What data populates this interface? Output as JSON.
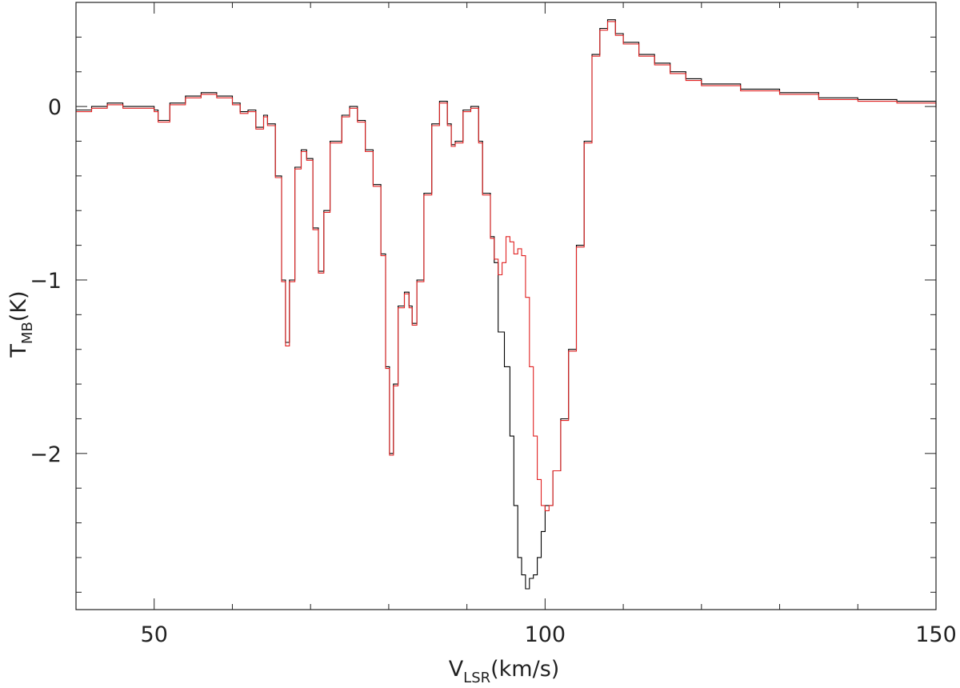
{
  "chart_data": {
    "type": "line",
    "title": "",
    "xlabel": {
      "main": "V",
      "sub": "LSR",
      "unit": "(km/s)"
    },
    "ylabel": {
      "main": "T",
      "sub": "MB",
      "unit": "(K)"
    },
    "xlim": [
      40,
      150
    ],
    "ylim": [
      -2.9,
      0.6
    ],
    "x_ticks": [
      50,
      100,
      150
    ],
    "y_ticks": [
      0,
      -1,
      -2
    ],
    "y_tick_labels": [
      "0",
      "−1",
      "−2"
    ],
    "x_minor_step": 10,
    "y_minor_step": 0.2,
    "grid": false,
    "legend": "none",
    "series": [
      {
        "color": "#000000",
        "points": [
          [
            40,
            -0.02
          ],
          [
            42,
            0.0
          ],
          [
            44,
            0.02
          ],
          [
            46,
            0.0
          ],
          [
            48,
            0.0
          ],
          [
            50,
            -0.02
          ],
          [
            50.5,
            -0.08
          ],
          [
            52,
            0.02
          ],
          [
            54,
            0.06
          ],
          [
            56,
            0.08
          ],
          [
            58,
            0.06
          ],
          [
            60,
            0.02
          ],
          [
            61,
            -0.03
          ],
          [
            62,
            -0.02
          ],
          [
            63,
            -0.12
          ],
          [
            64,
            -0.05
          ],
          [
            64.5,
            -0.1
          ],
          [
            65.5,
            -0.4
          ],
          [
            66.3,
            -1.0
          ],
          [
            66.8,
            -1.36
          ],
          [
            67.3,
            -1.0
          ],
          [
            68,
            -0.35
          ],
          [
            68.8,
            -0.25
          ],
          [
            69.5,
            -0.3
          ],
          [
            70.3,
            -0.7
          ],
          [
            71,
            -0.95
          ],
          [
            71.7,
            -0.6
          ],
          [
            72.5,
            -0.2
          ],
          [
            74,
            -0.05
          ],
          [
            75,
            0.0
          ],
          [
            76,
            -0.08
          ],
          [
            77,
            -0.25
          ],
          [
            78,
            -0.45
          ],
          [
            79,
            -0.85
          ],
          [
            79.6,
            -1.5
          ],
          [
            80.1,
            -2.0
          ],
          [
            80.6,
            -1.6
          ],
          [
            81.2,
            -1.15
          ],
          [
            82,
            -1.07
          ],
          [
            82.6,
            -1.15
          ],
          [
            83,
            -1.25
          ],
          [
            83.6,
            -1.0
          ],
          [
            84.5,
            -0.5
          ],
          [
            85.5,
            -0.1
          ],
          [
            86.5,
            0.03
          ],
          [
            87.5,
            -0.1
          ],
          [
            88,
            -0.22
          ],
          [
            88.5,
            -0.2
          ],
          [
            89.5,
            -0.02
          ],
          [
            90.5,
            0.0
          ],
          [
            91.5,
            -0.2
          ],
          [
            92,
            -0.5
          ],
          [
            93,
            -0.75
          ],
          [
            93.5,
            -0.9
          ],
          [
            94,
            -1.3
          ],
          [
            94.8,
            -1.5
          ],
          [
            95.5,
            -1.9
          ],
          [
            96,
            -2.3
          ],
          [
            96.5,
            -2.6
          ],
          [
            97,
            -2.7
          ],
          [
            97.5,
            -2.78
          ],
          [
            98,
            -2.72
          ],
          [
            98.5,
            -2.7
          ],
          [
            99,
            -2.6
          ],
          [
            99.5,
            -2.45
          ],
          [
            100,
            -2.3
          ],
          [
            101,
            -2.1
          ],
          [
            102,
            -1.8
          ],
          [
            103,
            -1.4
          ],
          [
            104,
            -0.8
          ],
          [
            105,
            -0.2
          ],
          [
            106,
            0.3
          ],
          [
            107,
            0.45
          ],
          [
            108,
            0.5
          ],
          [
            109,
            0.42
          ],
          [
            110,
            0.37
          ],
          [
            112,
            0.3
          ],
          [
            114,
            0.25
          ],
          [
            116,
            0.2
          ],
          [
            118,
            0.16
          ],
          [
            120,
            0.13
          ],
          [
            125,
            0.1
          ],
          [
            130,
            0.08
          ],
          [
            135,
            0.05
          ],
          [
            140,
            0.04
          ],
          [
            145,
            0.03
          ],
          [
            150,
            0.0
          ]
        ]
      },
      {
        "color": "#e02020",
        "points": [
          [
            40,
            -0.03
          ],
          [
            42,
            -0.01
          ],
          [
            44,
            0.01
          ],
          [
            46,
            -0.01
          ],
          [
            48,
            -0.01
          ],
          [
            50,
            -0.03
          ],
          [
            50.5,
            -0.09
          ],
          [
            52,
            0.01
          ],
          [
            54,
            0.05
          ],
          [
            56,
            0.07
          ],
          [
            58,
            0.05
          ],
          [
            60,
            0.01
          ],
          [
            61,
            -0.04
          ],
          [
            62,
            -0.03
          ],
          [
            63,
            -0.13
          ],
          [
            64,
            -0.06
          ],
          [
            64.5,
            -0.11
          ],
          [
            65.5,
            -0.41
          ],
          [
            66.3,
            -1.01
          ],
          [
            66.8,
            -1.38
          ],
          [
            67.3,
            -1.01
          ],
          [
            68,
            -0.36
          ],
          [
            68.8,
            -0.26
          ],
          [
            69.5,
            -0.31
          ],
          [
            70.3,
            -0.71
          ],
          [
            71,
            -0.96
          ],
          [
            71.7,
            -0.61
          ],
          [
            72.5,
            -0.21
          ],
          [
            74,
            -0.06
          ],
          [
            75,
            -0.01
          ],
          [
            76,
            -0.09
          ],
          [
            77,
            -0.26
          ],
          [
            78,
            -0.46
          ],
          [
            79,
            -0.86
          ],
          [
            79.6,
            -1.51
          ],
          [
            80.1,
            -2.01
          ],
          [
            80.6,
            -1.61
          ],
          [
            81.2,
            -1.16
          ],
          [
            82,
            -1.08
          ],
          [
            82.6,
            -1.16
          ],
          [
            83,
            -1.26
          ],
          [
            83.6,
            -1.01
          ],
          [
            84.5,
            -0.51
          ],
          [
            85.5,
            -0.11
          ],
          [
            86.5,
            0.02
          ],
          [
            87.5,
            -0.11
          ],
          [
            88,
            -0.23
          ],
          [
            88.5,
            -0.21
          ],
          [
            89.5,
            -0.03
          ],
          [
            90.5,
            -0.01
          ],
          [
            91.5,
            -0.21
          ],
          [
            92,
            -0.51
          ],
          [
            93,
            -0.76
          ],
          [
            93.5,
            -0.88
          ],
          [
            94,
            -0.97
          ],
          [
            94.5,
            -0.9
          ],
          [
            95,
            -0.75
          ],
          [
            95.5,
            -0.78
          ],
          [
            96,
            -0.85
          ],
          [
            96.5,
            -0.82
          ],
          [
            97,
            -0.86
          ],
          [
            97.5,
            -1.1
          ],
          [
            98,
            -1.5
          ],
          [
            98.5,
            -1.9
          ],
          [
            99,
            -2.15
          ],
          [
            99.5,
            -2.3
          ],
          [
            100,
            -2.33
          ],
          [
            100.5,
            -2.3
          ],
          [
            101,
            -2.1
          ],
          [
            102,
            -1.81
          ],
          [
            103,
            -1.41
          ],
          [
            104,
            -0.81
          ],
          [
            105,
            -0.21
          ],
          [
            106,
            0.29
          ],
          [
            107,
            0.44
          ],
          [
            108,
            0.49
          ],
          [
            109,
            0.41
          ],
          [
            110,
            0.36
          ],
          [
            112,
            0.29
          ],
          [
            114,
            0.24
          ],
          [
            116,
            0.19
          ],
          [
            118,
            0.15
          ],
          [
            120,
            0.12
          ],
          [
            125,
            0.09
          ],
          [
            130,
            0.07
          ],
          [
            135,
            0.04
          ],
          [
            140,
            0.03
          ],
          [
            145,
            0.02
          ],
          [
            150,
            -0.01
          ]
        ]
      }
    ]
  }
}
